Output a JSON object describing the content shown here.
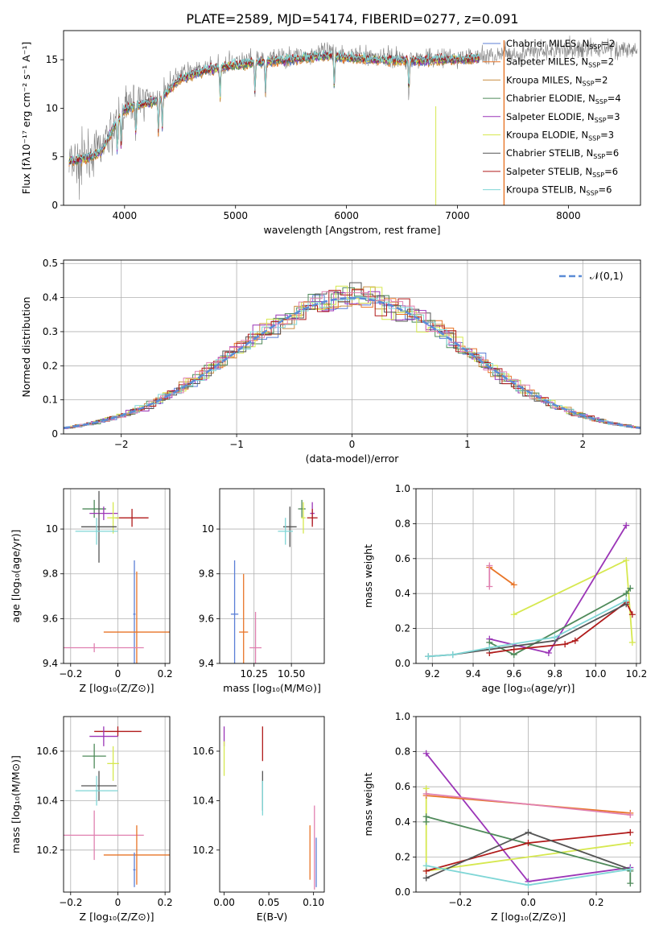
{
  "figure": {
    "title": "PLATE=2589, MJD=54174, FIBERID=0277, z=0.091"
  },
  "colors": {
    "Chabrier MILES": "#5b7fd6",
    "Salpeter MILES": "#e87528",
    "Kroupa MILES": "#c98f43",
    "Chabrier ELODIE": "#4f8a5a",
    "Salpeter ELODIE": "#9b35b7",
    "Kroupa ELODIE": "#d6e84f",
    "Chabrier STELIB": "#555555",
    "Salpeter STELIB": "#b01a1a",
    "Kroupa STELIB": "#7fd6d6",
    "pink": "#e080b0",
    "data": "#808080",
    "normal": "#5b8bd6"
  },
  "chart_data": [
    {
      "id": "spectrum",
      "type": "line",
      "xlabel": "wavelength [Angstrom, rest frame]",
      "ylabel": "Flux [fλ10⁻¹⁷ erg cm⁻² s⁻¹ A⁻¹]",
      "xlim": [
        3450,
        8650
      ],
      "ylim": [
        0,
        18
      ],
      "xticks": [
        4000,
        5000,
        6000,
        7000,
        8000
      ],
      "yticks": [
        0,
        5,
        10,
        15
      ],
      "grid": false,
      "legend_position": "right",
      "legend": [
        {
          "model": "Chabrier MILES",
          "nssp": 2
        },
        {
          "model": "Salpeter MILES",
          "nssp": 2
        },
        {
          "model": "Kroupa MILES",
          "nssp": 2
        },
        {
          "model": "Chabrier ELODIE",
          "nssp": 4
        },
        {
          "model": "Salpeter ELODIE",
          "nssp": 3
        },
        {
          "model": "Kroupa ELODIE",
          "nssp": 3
        },
        {
          "model": "Chabrier STELIB",
          "nssp": 6
        },
        {
          "model": "Salpeter STELIB",
          "nssp": 6
        },
        {
          "model": "Kroupa STELIB",
          "nssp": 6
        }
      ],
      "continuum": [
        [
          3500,
          4.5
        ],
        [
          3700,
          5.2
        ],
        [
          3800,
          6.0
        ],
        [
          3900,
          8.0
        ],
        [
          4000,
          10.0
        ],
        [
          4100,
          10.8
        ],
        [
          4300,
          11.2
        ],
        [
          4500,
          13.5
        ],
        [
          4700,
          14.0
        ],
        [
          4900,
          14.5
        ],
        [
          5200,
          15.0
        ],
        [
          5500,
          15.3
        ],
        [
          5800,
          15.8
        ],
        [
          6100,
          15.5
        ],
        [
          6400,
          15.2
        ],
        [
          6700,
          15.1
        ],
        [
          7000,
          15.2
        ],
        [
          7300,
          15.4
        ],
        [
          7700,
          15.8
        ],
        [
          8000,
          16.0
        ],
        [
          8400,
          16.2
        ],
        [
          8620,
          16.0
        ]
      ],
      "model_continuum": [
        [
          3500,
          4.5
        ],
        [
          3700,
          5.0
        ],
        [
          3800,
          5.6
        ],
        [
          3900,
          8.0
        ],
        [
          4000,
          9.8
        ],
        [
          4100,
          10.3
        ],
        [
          4300,
          10.7
        ],
        [
          4500,
          13.0
        ],
        [
          4700,
          13.8
        ],
        [
          4900,
          14.3
        ],
        [
          5200,
          14.7
        ],
        [
          5500,
          15.0
        ],
        [
          5800,
          15.4
        ],
        [
          6100,
          15.1
        ],
        [
          6400,
          14.9
        ],
        [
          6700,
          14.9
        ],
        [
          7000,
          15.0
        ],
        [
          7200,
          15.1
        ]
      ],
      "absorption_lines": [
        3934,
        3969,
        4102,
        4305,
        4340,
        4861,
        5175,
        5270,
        5890,
        6563
      ]
    },
    {
      "id": "residual_histogram",
      "type": "bar",
      "xlabel": "(data-model)/error",
      "ylabel": "Normed distribution",
      "xlim": [
        -2.5,
        2.5
      ],
      "ylim": [
        0,
        0.51
      ],
      "xticks": [
        -2,
        -1,
        0,
        1,
        2
      ],
      "yticks": [
        0.0,
        0.1,
        0.2,
        0.3,
        0.4,
        0.5
      ],
      "grid": true,
      "legend_position": "top-right",
      "legend": [
        "𝒩(0,1)"
      ],
      "bin_width": 0.1,
      "normal": {
        "mean": 0,
        "sigma": 1
      }
    },
    {
      "id": "age_vs_Z",
      "type": "scatter",
      "xlabel": "Z [log₁₀(Z/Z⊙)]",
      "ylabel": "age  [log₁₀(age/yr)]",
      "xlim": [
        -0.23,
        0.22
      ],
      "ylim": [
        9.4,
        10.18
      ],
      "xticks": [
        -0.2,
        0.0,
        0.2
      ],
      "yticks": [
        9.4,
        9.6,
        9.8,
        10.0
      ],
      "grid": true,
      "points": [
        {
          "c": "Chabrier ELODIE",
          "x": -0.1,
          "xe": 0.1,
          "y": 10.09,
          "ye": 0.04
        },
        {
          "c": "Salpeter ELODIE",
          "x": -0.06,
          "xe": 0.12,
          "y": 10.07,
          "ye": 0.03
        },
        {
          "c": "Salpeter STELIB",
          "x": 0.06,
          "xe": 0.14,
          "y": 10.05,
          "ye": 0.04
        },
        {
          "c": "Kroupa ELODIE",
          "x": -0.02,
          "xe": 0.05,
          "y": 10.05,
          "ye": 0.07
        },
        {
          "c": "Chabrier STELIB",
          "x": -0.08,
          "xe": 0.15,
          "y": 10.01,
          "ye": 0.16
        },
        {
          "c": "Kroupa STELIB",
          "x": -0.09,
          "xe": 0.18,
          "y": 9.99,
          "ye": 0.06
        },
        {
          "c": "Chabrier MILES",
          "x": 0.07,
          "xe": 0.01,
          "y": 9.62,
          "ye": 0.24
        },
        {
          "c": "Salpeter MILES",
          "x": 0.08,
          "xe": 0.28,
          "y": 9.54,
          "ye": 0.27
        },
        {
          "c": "pink",
          "x": -0.1,
          "xe": 0.42,
          "y": 9.47,
          "ye": 0.02
        }
      ]
    },
    {
      "id": "age_vs_mass",
      "type": "scatter",
      "xlabel": "mass [log₁₀(M/M⊙)]",
      "ylabel": "",
      "xlim": [
        10.02,
        10.72
      ],
      "ylim": [
        9.4,
        10.18
      ],
      "xticks": [
        10.25,
        10.5
      ],
      "xticklabels": [
        "10.25",
        "10.50"
      ],
      "yticks": [
        9.4,
        9.6,
        9.8,
        10.0
      ],
      "grid": true,
      "points": [
        {
          "c": "Chabrier ELODIE",
          "x": 10.57,
          "xe": 0.05,
          "y": 10.09,
          "ye": 0.04
        },
        {
          "c": "Salpeter ELODIE",
          "x": 10.64,
          "xe": 0.03,
          "y": 10.07,
          "ye": 0.05
        },
        {
          "c": "Salpeter STELIB",
          "x": 10.64,
          "xe": 0.07,
          "y": 10.05,
          "ye": 0.04
        },
        {
          "c": "Kroupa ELODIE",
          "x": 10.58,
          "xe": 0.03,
          "y": 10.05,
          "ye": 0.07
        },
        {
          "c": "Chabrier STELIB",
          "x": 10.49,
          "xe": 0.09,
          "y": 10.01,
          "ye": 0.09
        },
        {
          "c": "Kroupa STELIB",
          "x": 10.46,
          "xe": 0.1,
          "y": 9.99,
          "ye": 0.06
        },
        {
          "c": "Chabrier MILES",
          "x": 10.12,
          "xe": 0.05,
          "y": 9.62,
          "ye": 0.24
        },
        {
          "c": "Salpeter MILES",
          "x": 10.18,
          "xe": 0.06,
          "y": 9.54,
          "ye": 0.26
        },
        {
          "c": "pink",
          "x": 10.26,
          "xe": 0.08,
          "y": 9.47,
          "ye": 0.16
        }
      ]
    },
    {
      "id": "mass_weight_vs_age",
      "type": "line",
      "xlabel": "age  [log₁₀(age/yr)]",
      "ylabel": "mass weight",
      "xlim": [
        9.12,
        10.22
      ],
      "ylim": [
        0,
        1
      ],
      "xticks": [
        9.2,
        9.4,
        9.6,
        9.8,
        10.0,
        10.2
      ],
      "xticklabels": [
        "9.2",
        "9.4",
        "9.6",
        "9.8",
        "10.0",
        "10.2"
      ],
      "yticks": [
        0,
        0.2,
        0.4,
        0.6,
        0.8,
        1.0
      ],
      "yticklabels": [
        "0.0",
        "0.2",
        "0.4",
        "0.6",
        "0.8",
        "1.0"
      ],
      "grid": true,
      "series": [
        {
          "c": "Salpeter MILES",
          "x": [
            9.48,
            9.6
          ],
          "y": [
            0.55,
            0.45
          ]
        },
        {
          "c": "pink",
          "x": [
            9.48,
            9.48
          ],
          "y": [
            0.56,
            0.44
          ]
        },
        {
          "c": "Kroupa ELODIE",
          "x": [
            9.6,
            10.15,
            10.18
          ],
          "y": [
            0.28,
            0.59,
            0.12
          ]
        },
        {
          "c": "Salpeter ELODIE",
          "x": [
            9.48,
            9.77,
            10.15
          ],
          "y": [
            0.14,
            0.06,
            0.79
          ]
        },
        {
          "c": "Chabrier ELODIE",
          "x": [
            9.48,
            9.6,
            10.15,
            10.17
          ],
          "y": [
            0.12,
            0.05,
            0.4,
            0.43
          ]
        },
        {
          "c": "Salpeter STELIB",
          "x": [
            9.48,
            9.6,
            9.85,
            9.9,
            10.15,
            10.18
          ],
          "y": [
            0.06,
            0.08,
            0.11,
            0.13,
            0.35,
            0.28
          ]
        },
        {
          "c": "Chabrier STELIB",
          "x": [
            9.18,
            9.3,
            9.48,
            9.8,
            10.15
          ],
          "y": [
            0.04,
            0.05,
            0.08,
            0.13,
            0.34
          ]
        },
        {
          "c": "Kroupa STELIB",
          "x": [
            9.18,
            9.3,
            9.48,
            9.8,
            10.15
          ],
          "y": [
            0.04,
            0.05,
            0.09,
            0.15,
            0.36
          ]
        }
      ]
    },
    {
      "id": "mass_vs_Z",
      "type": "scatter",
      "xlabel": "Z [log₁₀(Z/Z⊙)]",
      "ylabel": "mass [log₁₀(M/M⊙)]",
      "xlim": [
        -0.23,
        0.22
      ],
      "ylim": [
        10.03,
        10.74
      ],
      "xticks": [
        -0.2,
        0.0,
        0.2
      ],
      "yticks": [
        10.2,
        10.4,
        10.6
      ],
      "grid": true,
      "points": [
        {
          "c": "Salpeter STELIB",
          "x": 0.0,
          "xe": 0.2,
          "y": 10.68,
          "ye": 0.02
        },
        {
          "c": "Salpeter ELODIE",
          "x": -0.06,
          "xe": 0.12,
          "y": 10.66,
          "ye": 0.04
        },
        {
          "c": "Chabrier ELODIE",
          "x": -0.1,
          "xe": 0.1,
          "y": 10.58,
          "ye": 0.05
        },
        {
          "c": "Kroupa ELODIE",
          "x": -0.02,
          "xe": 0.05,
          "y": 10.55,
          "ye": 0.07
        },
        {
          "c": "Chabrier STELIB",
          "x": -0.08,
          "xe": 0.15,
          "y": 10.46,
          "ye": 0.06
        },
        {
          "c": "Kroupa STELIB",
          "x": -0.09,
          "xe": 0.18,
          "y": 10.44,
          "ye": 0.06
        },
        {
          "c": "pink",
          "x": -0.1,
          "xe": 0.42,
          "y": 10.26,
          "ye": 0.1
        },
        {
          "c": "Salpeter MILES",
          "x": 0.08,
          "xe": 0.28,
          "y": 10.18,
          "ye": 0.12
        },
        {
          "c": "Chabrier MILES",
          "x": 0.07,
          "xe": 0.01,
          "y": 10.12,
          "ye": 0.07
        }
      ]
    },
    {
      "id": "mass_vs_ebv",
      "type": "scatter",
      "xlabel": "E(B-V)",
      "ylabel": "",
      "xlim": [
        -0.005,
        0.112
      ],
      "ylim": [
        10.03,
        10.74
      ],
      "xticks": [
        0.0,
        0.05,
        0.1
      ],
      "xticklabels": [
        "0.00",
        "0.05",
        "0.10"
      ],
      "yticks": [
        10.2,
        10.4,
        10.6
      ],
      "grid": false,
      "points": [
        {
          "c": "Salpeter ELODIE",
          "x": 0.0,
          "y": 10.66,
          "ye": 0.04
        },
        {
          "c": "Kroupa ELODIE",
          "x": 0.0,
          "y": 10.57,
          "ye": 0.07
        },
        {
          "c": "Salpeter STELIB",
          "x": 0.043,
          "y": 10.63,
          "ye": 0.07
        },
        {
          "c": "Chabrier STELIB",
          "x": 0.043,
          "y": 10.44,
          "ye": 0.08
        },
        {
          "c": "Kroupa STELIB",
          "x": 0.043,
          "y": 10.41,
          "ye": 0.07
        },
        {
          "c": "Salpeter MILES",
          "x": 0.096,
          "y": 10.19,
          "ye": 0.11
        },
        {
          "c": "pink",
          "x": 0.101,
          "y": 10.21,
          "ye": 0.17
        },
        {
          "c": "Chabrier MILES",
          "x": 0.103,
          "y": 10.15,
          "ye": 0.1
        }
      ]
    },
    {
      "id": "mass_weight_vs_Z",
      "type": "line",
      "xlabel": "Z [log₁₀(Z/Z⊙)]",
      "ylabel": "mass weight",
      "xlim": [
        -0.33,
        0.33
      ],
      "ylim": [
        0,
        1
      ],
      "xticks": [
        -0.2,
        0.0,
        0.2
      ],
      "xticklabels": [
        "−0.2",
        "0.0",
        "0.2"
      ],
      "yticks": [
        0,
        0.2,
        0.4,
        0.6,
        0.8,
        1.0
      ],
      "yticklabels": [
        "0.0",
        "0.2",
        "0.4",
        "0.6",
        "0.8",
        "1.0"
      ],
      "grid": true,
      "series": [
        {
          "c": "Salpeter ELODIE",
          "x": [
            -0.3,
            0.0,
            0.3
          ],
          "y": [
            0.79,
            0.06,
            0.14
          ]
        },
        {
          "c": "Kroupa ELODIE",
          "x": [
            -0.3,
            -0.3,
            0.3
          ],
          "y": [
            0.59,
            0.12,
            0.28
          ]
        },
        {
          "c": "Salpeter MILES",
          "x": [
            -0.3,
            0.3
          ],
          "y": [
            0.55,
            0.45
          ]
        },
        {
          "c": "pink",
          "x": [
            -0.3,
            0.3
          ],
          "y": [
            0.56,
            0.44
          ]
        },
        {
          "c": "Chabrier ELODIE",
          "x": [
            -0.3,
            -0.3,
            0.3,
            0.3
          ],
          "y": [
            0.4,
            0.43,
            0.12,
            0.05
          ]
        },
        {
          "c": "Salpeter STELIB",
          "x": [
            -0.3,
            0.0,
            0.3
          ],
          "y": [
            0.12,
            0.28,
            0.34
          ]
        },
        {
          "c": "Chabrier STELIB",
          "x": [
            -0.3,
            0.0,
            0.3
          ],
          "y": [
            0.08,
            0.34,
            0.13
          ]
        },
        {
          "c": "Kroupa STELIB",
          "x": [
            -0.3,
            0.0,
            0.3
          ],
          "y": [
            0.15,
            0.04,
            0.13
          ]
        }
      ]
    }
  ]
}
